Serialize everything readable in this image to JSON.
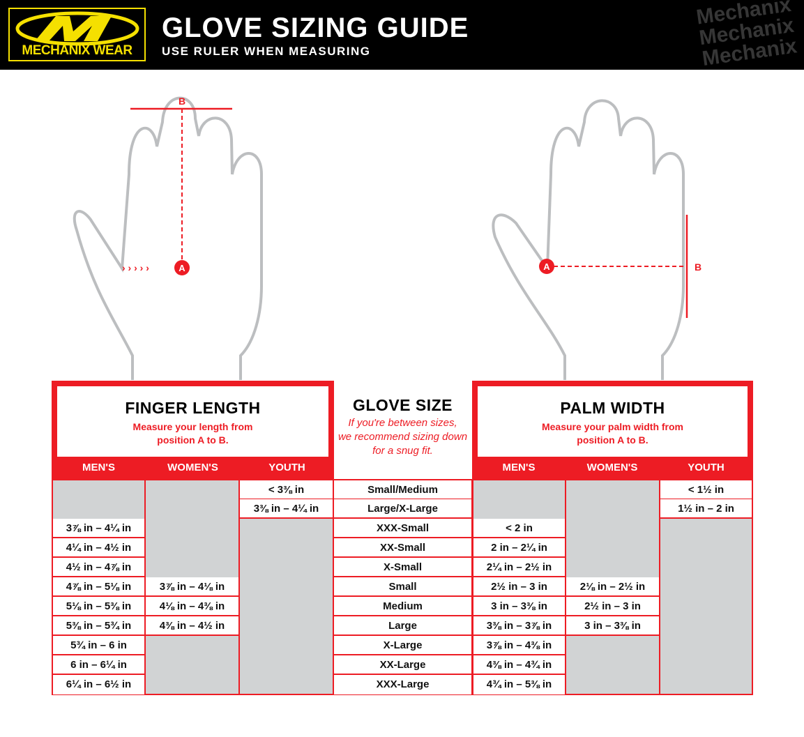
{
  "header": {
    "logo_text": "MECHANIX WEAR",
    "title": "GLOVE SIZING GUIDE",
    "subtitle": "USE RULER WHEN MEASURING",
    "watermark": "Mechanix"
  },
  "diagram": {
    "point_a": "A",
    "point_b": "B"
  },
  "finger": {
    "title": "FINGER LENGTH",
    "desc1": "Measure your length from",
    "desc2": "position A to B.",
    "cols": [
      "MEN'S",
      "WOMEN'S",
      "YOUTH"
    ]
  },
  "glove": {
    "title": "GLOVE SIZE",
    "note1": "If you're between sizes,",
    "note2": "we recommend sizing down",
    "note3": "for a snug fit."
  },
  "palm": {
    "title": "PALM WIDTH",
    "desc1": "Measure your palm width from",
    "desc2": "position A to B.",
    "cols": [
      "MEN'S",
      "WOMEN'S",
      "YOUTH"
    ]
  },
  "colors": {
    "accent": "#ed1c24",
    "empty": "#d1d3d4",
    "logo": "#f5e000"
  },
  "table": {
    "sizes": [
      "Small/Medium",
      "Large/X-Large",
      "XXX-Small",
      "XX-Small",
      "X-Small",
      "Small",
      "Medium",
      "Large",
      "X-Large",
      "XX-Large",
      "XXX-Large"
    ],
    "finger_mens": [
      null,
      null,
      "3⅞ in – 4¼ in",
      "4¼ in – 4½ in",
      "4½ in – 4⅞ in",
      "4⅞ in – 5⅛ in",
      "5⅛ in – 5⅜ in",
      "5⅜ in – 5¾ in",
      "5¾ in – 6 in",
      "6 in – 6¼ in",
      "6¼ in – 6½ in"
    ],
    "finger_womens": [
      null,
      null,
      null,
      null,
      null,
      "3⅞ in – 4⅛ in",
      "4⅛ in – 4⅜ in",
      "4⅜ in – 4½ in",
      null,
      null,
      null
    ],
    "finger_youth": [
      "< 3⅜ in",
      "3⅜ in – 4¼ in",
      null,
      null,
      null,
      null,
      null,
      null,
      null,
      null,
      null
    ],
    "palm_mens": [
      null,
      null,
      "< 2 in",
      "2 in – 2¼ in",
      "2¼ in – 2½ in",
      "2½ in – 3 in",
      "3 in – 3⅜ in",
      "3⅜ in – 3⅞ in",
      "3⅞ in – 4⅜ in",
      "4⅜ in – 4¾ in",
      "4¾ in – 5⅜ in"
    ],
    "palm_womens": [
      null,
      null,
      null,
      null,
      null,
      "2⅛ in – 2½ in",
      "2½ in – 3 in",
      "3 in – 3⅜ in",
      null,
      null,
      null
    ],
    "palm_youth": [
      "< 1½ in",
      "1½ in – 2 in",
      null,
      null,
      null,
      null,
      null,
      null,
      null,
      null,
      null
    ]
  }
}
